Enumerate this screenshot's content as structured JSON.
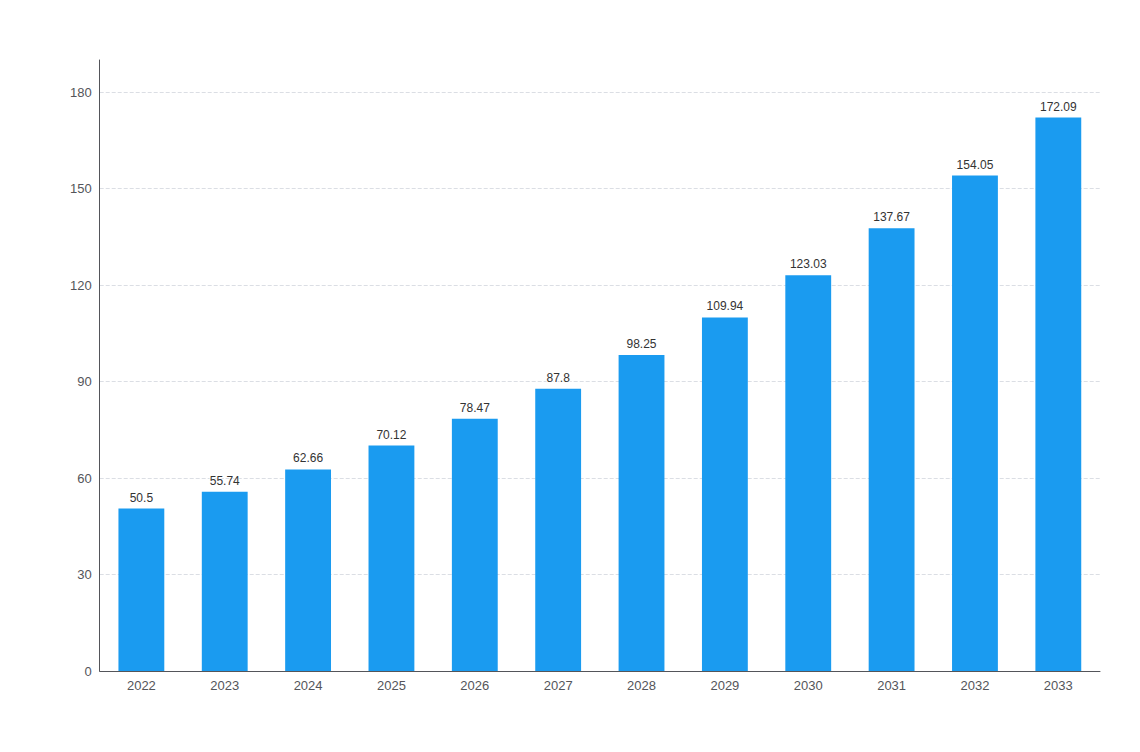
{
  "chart_data": {
    "type": "bar",
    "categories": [
      "2022",
      "2023",
      "2024",
      "2025",
      "2026",
      "2027",
      "2028",
      "2029",
      "2030",
      "2031",
      "2032",
      "2033"
    ],
    "values": [
      50.5,
      55.74,
      62.66,
      70.12,
      78.47,
      87.8,
      98.25,
      109.94,
      123.03,
      137.67,
      154.05,
      172.09
    ],
    "color": "#1A9BF0",
    "ylim": [
      0,
      190
    ],
    "yticks": [
      0,
      30,
      60,
      90,
      120,
      150,
      180
    ],
    "grid": true,
    "data_labels": true
  }
}
